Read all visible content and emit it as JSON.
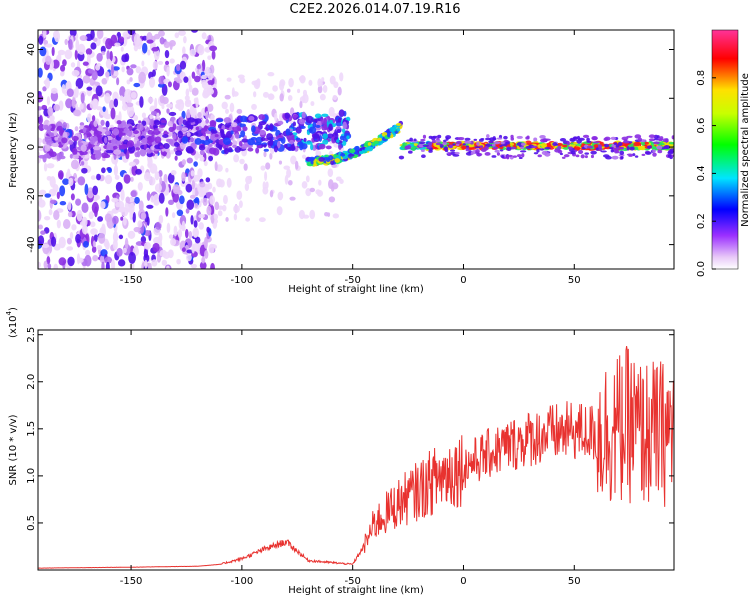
{
  "title": "C2E2.2026.014.07.19.R16",
  "chart_data": [
    {
      "type": "heatmap",
      "xlabel": "Height of straight line (km)",
      "ylabel": "Frequency (Hz)",
      "xlim": [
        -192,
        95
      ],
      "ylim": [
        -50,
        48
      ],
      "xticks": [
        -150,
        -100,
        -50,
        0,
        50
      ],
      "yticks": [
        -40,
        -20,
        0,
        20,
        40
      ],
      "colorbar": {
        "label": "Normalized spectral amplitude",
        "range": [
          0,
          1
        ],
        "ticks": [
          0.0,
          0.2,
          0.4,
          0.6,
          0.8
        ],
        "tick_labels": [
          "0.0",
          "0.2",
          "0.4",
          "0.6",
          "0.8"
        ]
      },
      "features": [
        {
          "x_range": [
            -190,
            -115
          ],
          "freq_range": [
            -50,
            48
          ],
          "amplitude": 0.1,
          "description": "broadband noise"
        },
        {
          "x_range": [
            -130,
            -55
          ],
          "freq_center": 5,
          "amplitude": 0.3
        },
        {
          "x_range": [
            -70,
            -28
          ],
          "freq_center": -5,
          "freq_end": 8,
          "amplitude": 0.4
        },
        {
          "x_range": [
            -28,
            95
          ],
          "freq_center": 0,
          "amplitude": 0.9
        }
      ]
    },
    {
      "type": "line",
      "xlabel": "Height of straight line (km)",
      "ylabel": "SNR (10 * v/v)",
      "scale_label": "(x10",
      "scale_exp": "4",
      "scale_close": ")",
      "xlim": [
        -192,
        95
      ],
      "ylim": [
        0,
        2.55
      ],
      "xticks": [
        -150,
        -100,
        -50,
        0,
        50
      ],
      "yticks": [
        0.5,
        1.0,
        1.5,
        2.0,
        2.5
      ],
      "ytick_labels": [
        "0.5",
        "1.0",
        "1.5",
        "2.0",
        "2.5"
      ],
      "series": [
        {
          "color": "#e8322f",
          "envelope": {
            "x": [
              -192,
              -150,
              -120,
              -110,
              -100,
              -90,
              -80,
              -75,
              -70,
              -60,
              -50,
              -45,
              -40,
              -30,
              -20,
              -10,
              0,
              10,
              20,
              30,
              40,
              50,
              60,
              70,
              75,
              80,
              90,
              95
            ],
            "y": [
              0.02,
              0.03,
              0.04,
              0.06,
              0.12,
              0.22,
              0.3,
              0.2,
              0.1,
              0.08,
              0.06,
              0.25,
              0.5,
              0.7,
              0.85,
              1.0,
              1.1,
              1.22,
              1.32,
              1.4,
              1.45,
              1.48,
              1.45,
              1.5,
              1.55,
              1.45,
              1.45,
              1.5
            ]
          }
        }
      ]
    }
  ]
}
